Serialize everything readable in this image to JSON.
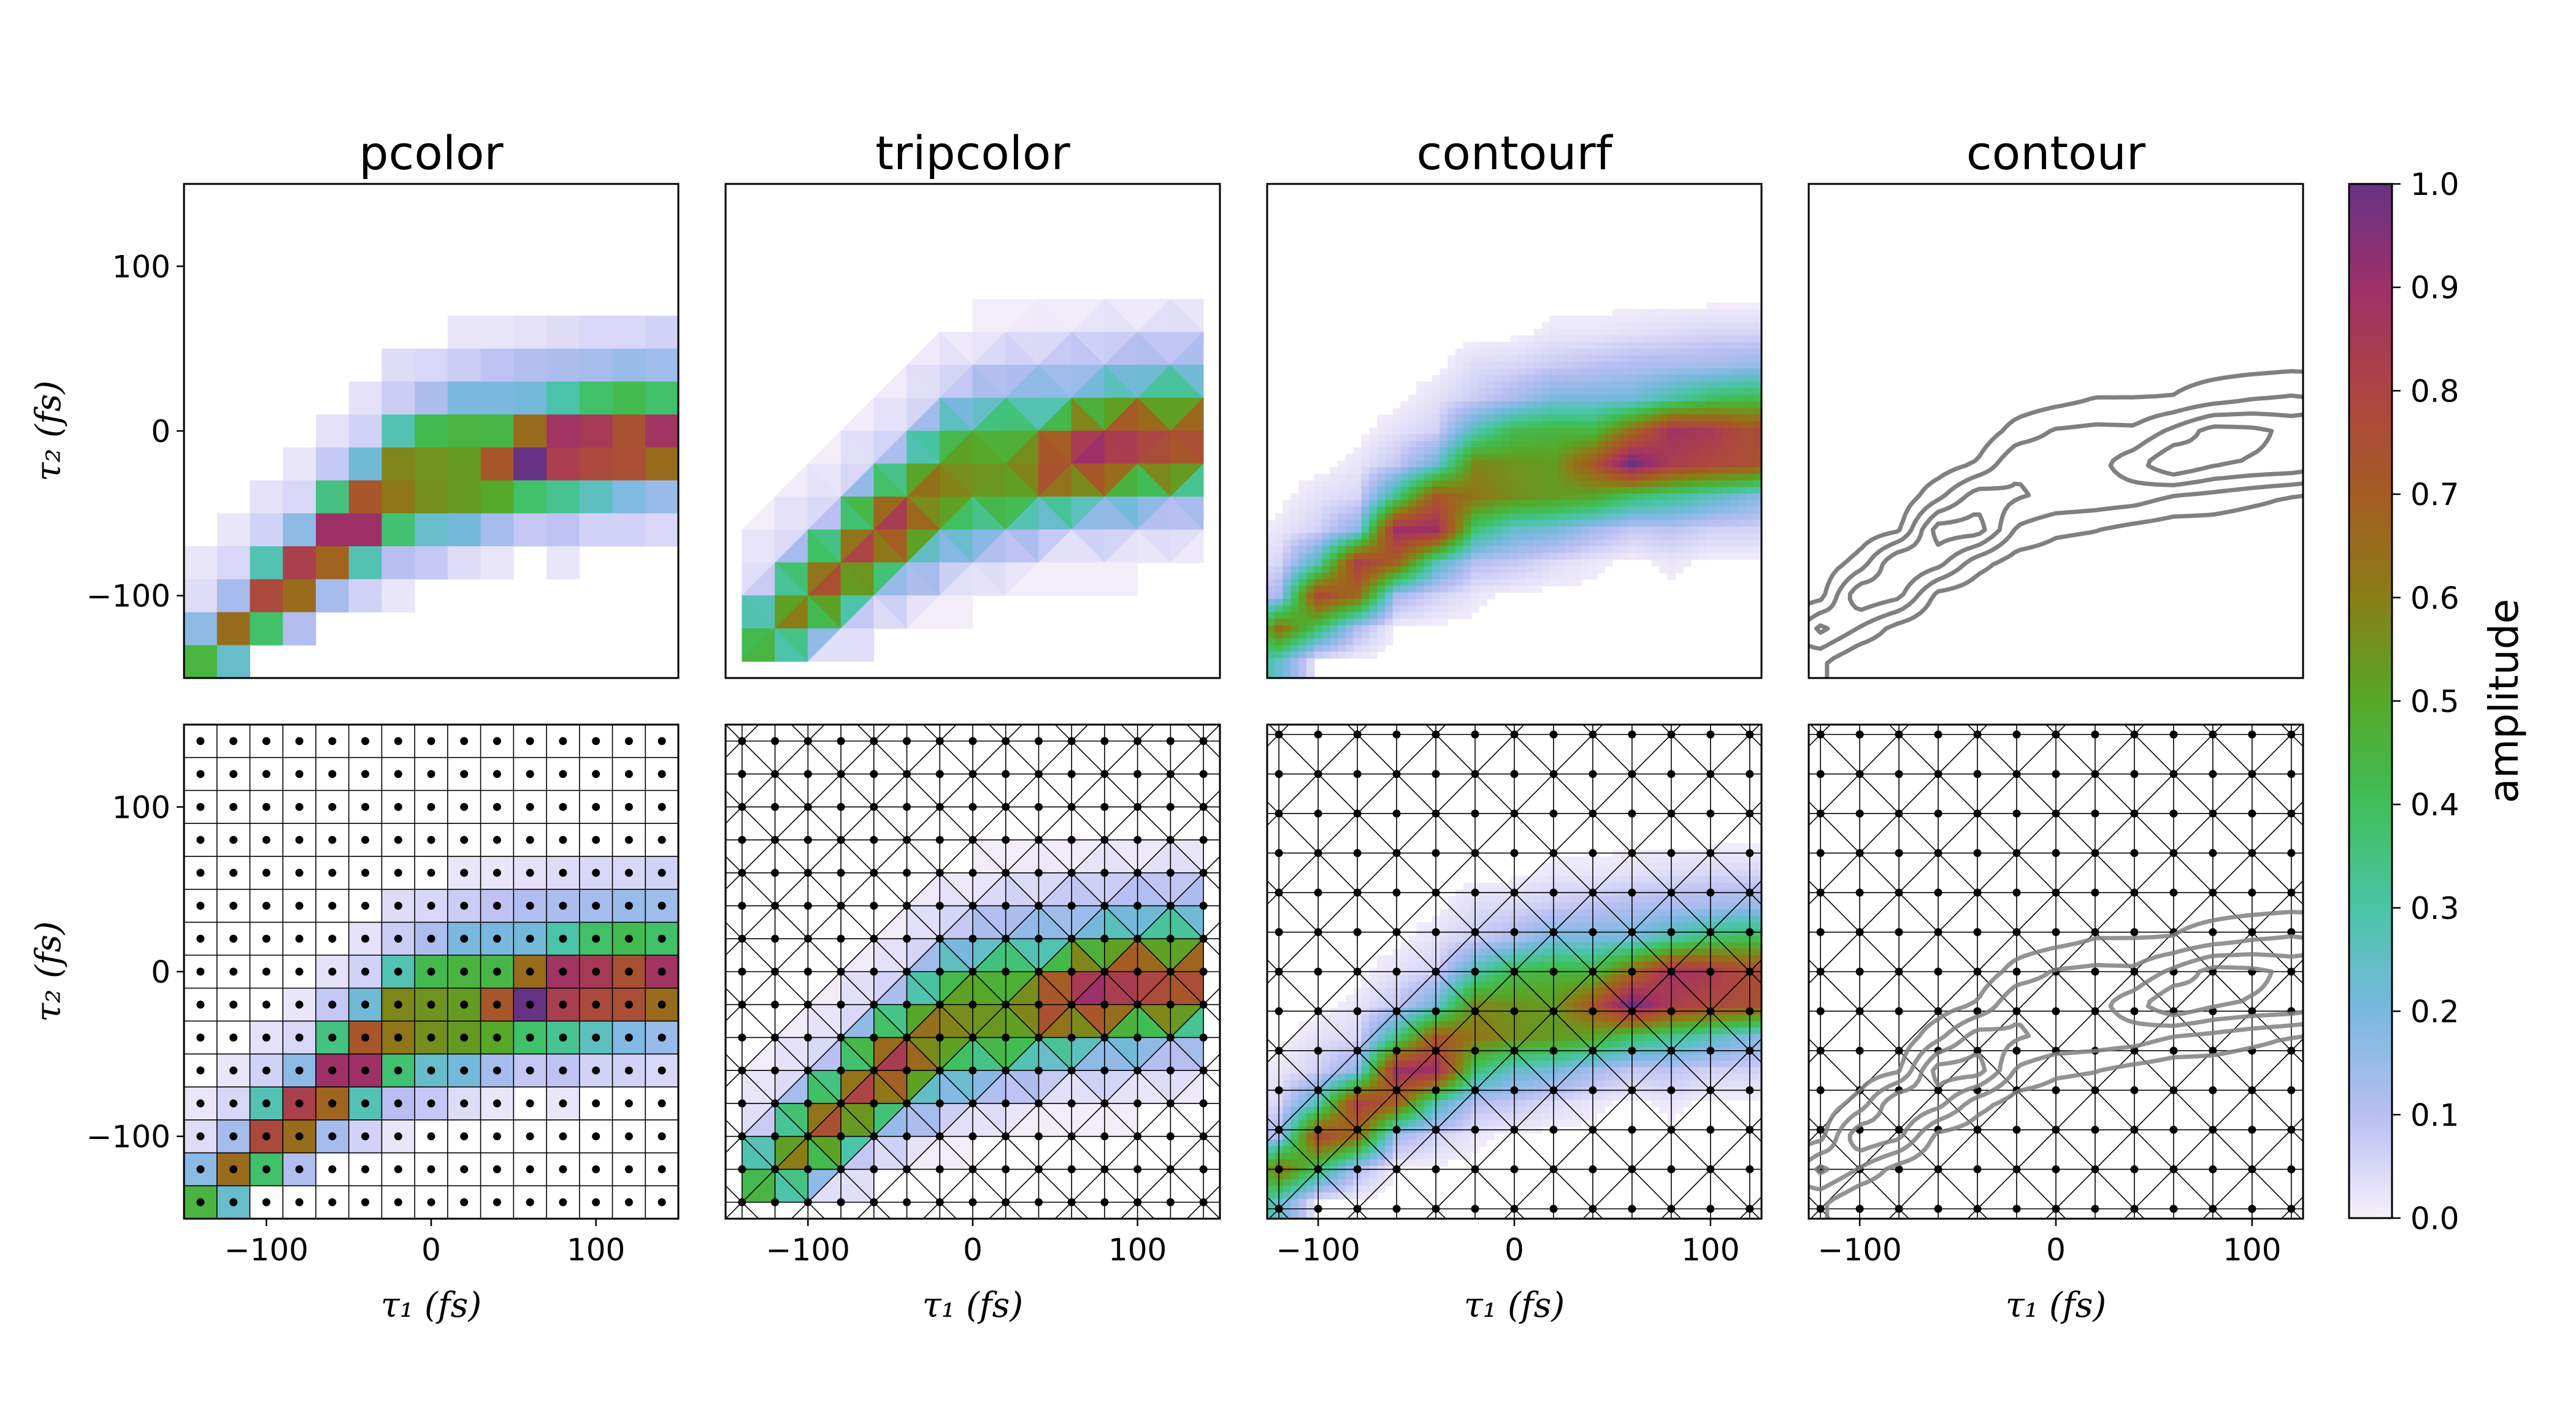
{
  "chart_data": {
    "type": "heatmap",
    "panels": [
      {
        "title": "pcolor",
        "method": "pcolor",
        "xlim": [
          -150,
          150
        ]
      },
      {
        "title": "tripcolor",
        "method": "tripcolor",
        "xlim": [
          -150,
          150
        ]
      },
      {
        "title": "contourf",
        "method": "contourf",
        "xlim": [
          -126,
          126
        ]
      },
      {
        "title": "contour",
        "method": "contour",
        "xlim": [
          -126,
          126
        ]
      }
    ],
    "rows": [
      {
        "mesh_overlay": false
      },
      {
        "mesh_overlay": true
      }
    ],
    "ylim": [
      -150,
      150
    ],
    "xlabel": "τ₁ (fs)",
    "ylabel": "τ₂ (fs)",
    "xticks": [
      -100,
      0,
      100
    ],
    "xticklabels": [
      "−100",
      "0",
      "100"
    ],
    "yticks": [
      100,
      0,
      -100
    ],
    "yticklabels": [
      "100",
      "0",
      "−100"
    ],
    "grid_x": [
      -140,
      -120,
      -100,
      -80,
      -60,
      -40,
      -20,
      0,
      20,
      40,
      60,
      80,
      100,
      120,
      140
    ],
    "grid_y": [
      140,
      120,
      100,
      80,
      60,
      40,
      20,
      0,
      -20,
      -40,
      -60,
      -80,
      -100,
      -120,
      -140
    ],
    "z": [
      [
        0,
        0,
        0,
        0,
        0,
        0,
        0,
        0,
        0,
        0,
        0,
        0,
        0,
        0,
        0
      ],
      [
        0,
        0,
        0,
        0,
        0,
        0,
        0,
        0,
        0,
        0,
        0,
        0,
        0,
        0,
        0
      ],
      [
        0,
        0,
        0,
        0,
        0,
        0,
        0,
        0,
        0,
        0,
        0,
        0,
        0,
        0,
        0
      ],
      [
        0,
        0,
        0,
        0,
        0,
        0,
        0,
        0,
        0,
        0,
        0,
        0,
        0,
        0,
        0
      ],
      [
        0,
        0,
        0,
        0,
        0,
        0,
        0,
        0,
        0.02,
        0.02,
        0.03,
        0.04,
        0.05,
        0.05,
        0.06
      ],
      [
        0,
        0,
        0,
        0,
        0,
        0,
        0.04,
        0.05,
        0.07,
        0.09,
        0.11,
        0.12,
        0.13,
        0.15,
        0.14
      ],
      [
        0,
        0,
        0,
        0,
        0,
        0.03,
        0.07,
        0.12,
        0.2,
        0.2,
        0.21,
        0.3,
        0.38,
        0.42,
        0.38
      ],
      [
        0,
        0,
        0,
        0,
        0.03,
        0.06,
        0.28,
        0.42,
        0.45,
        0.44,
        0.65,
        0.88,
        0.85,
        0.75,
        0.88
      ],
      [
        0,
        0,
        0,
        0.02,
        0.08,
        0.22,
        0.58,
        0.55,
        0.53,
        0.72,
        1.0,
        0.83,
        0.78,
        0.76,
        0.65
      ],
      [
        0,
        0,
        0.03,
        0.05,
        0.35,
        0.72,
        0.62,
        0.56,
        0.53,
        0.5,
        0.38,
        0.33,
        0.26,
        0.19,
        0.15
      ],
      [
        0,
        0.02,
        0.06,
        0.17,
        0.9,
        0.9,
        0.37,
        0.24,
        0.21,
        0.13,
        0.08,
        0.09,
        0.06,
        0.06,
        0.05
      ],
      [
        0.02,
        0.05,
        0.28,
        0.82,
        0.68,
        0.28,
        0.1,
        0.08,
        0.04,
        0.02,
        0,
        0.02,
        0,
        0,
        0
      ],
      [
        0.04,
        0.13,
        0.78,
        0.65,
        0.13,
        0.06,
        0.02,
        0,
        0,
        0,
        0,
        0,
        0,
        0,
        0
      ],
      [
        0.17,
        0.65,
        0.38,
        0.11,
        0,
        0,
        0,
        0,
        0,
        0,
        0,
        0,
        0,
        0,
        0
      ],
      [
        0.45,
        0.24,
        0,
        0,
        0,
        0,
        0,
        0,
        0,
        0,
        0,
        0,
        0,
        0,
        0
      ]
    ],
    "contour_mesh_x": [
      -120,
      -100,
      -80,
      -60,
      -40,
      -20,
      0,
      20,
      40,
      60,
      80,
      100,
      120
    ],
    "contour_mesh_y": [
      144,
      120,
      96,
      72,
      48,
      24,
      0,
      -24,
      -48,
      -72,
      -96,
      -120,
      -144
    ],
    "contour_levels": [
      0.2,
      0.4,
      0.6,
      0.8
    ],
    "contour_color": "#808080",
    "colorbar": {
      "label": "amplitude",
      "range": [
        0,
        1
      ],
      "ticks": [
        0,
        0.1,
        0.2,
        0.3,
        0.4,
        0.5,
        0.6,
        0.7,
        0.8,
        0.9,
        1.0
      ],
      "ticklabels": [
        "0.0",
        "0.1",
        "0.2",
        "0.3",
        "0.4",
        "0.5",
        "0.6",
        "0.7",
        "0.8",
        "0.9",
        "1.0"
      ],
      "position": "right"
    },
    "colormap": [
      {
        "v": 0.0,
        "color": "#f7f0fb"
      },
      {
        "v": 0.1,
        "color": "#b8bef2"
      },
      {
        "v": 0.2,
        "color": "#7ab8e0"
      },
      {
        "v": 0.3,
        "color": "#4ac4a8"
      },
      {
        "v": 0.4,
        "color": "#3fbf5a"
      },
      {
        "v": 0.5,
        "color": "#55a828"
      },
      {
        "v": 0.6,
        "color": "#8a7d16"
      },
      {
        "v": 0.7,
        "color": "#a55c22"
      },
      {
        "v": 0.8,
        "color": "#ad4444"
      },
      {
        "v": 0.9,
        "color": "#9e3068"
      },
      {
        "v": 1.0,
        "color": "#673284"
      }
    ]
  }
}
